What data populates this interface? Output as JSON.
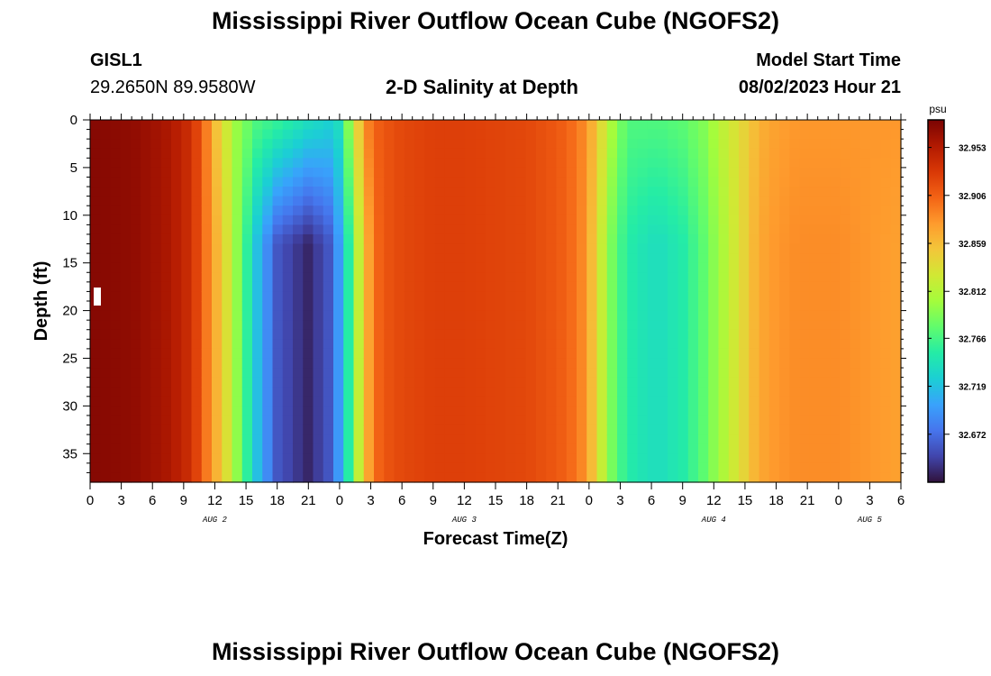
{
  "header": {
    "title": "Mississippi River Outflow Ocean Cube (NGOFS2)",
    "station": "GISL1",
    "coords": "29.2650N  89.9580W",
    "subtitle": "2-D Salinity at Depth",
    "model_start_label": "Model Start Time",
    "model_start_value": "08/02/2023 Hour 21"
  },
  "footer": {
    "title": "Mississippi River Outflow Ocean Cube (NGOFS2)"
  },
  "chart_data": {
    "type": "heatmap",
    "xlabel": "Forecast Time(Z)",
    "ylabel": "Depth (ft)",
    "x_hours": [
      0,
      78
    ],
    "x_tick_labels": [
      "0",
      "3",
      "6",
      "9",
      "12",
      "15",
      "18",
      "21",
      "0",
      "3",
      "6",
      "9",
      "12",
      "15",
      "18",
      "21",
      "0",
      "3",
      "6",
      "9",
      "12",
      "15",
      "18",
      "21",
      "0",
      "3",
      "6"
    ],
    "day_labels": [
      {
        "hour": 12,
        "label": "AUG 2"
      },
      {
        "hour": 36,
        "label": "AUG 3"
      },
      {
        "hour": 60,
        "label": "AUG 4"
      },
      {
        "hour": 75,
        "label": "AUG 5"
      }
    ],
    "ylim": [
      0,
      38
    ],
    "y_ticks": [
      0,
      5,
      10,
      15,
      20,
      25,
      30,
      35
    ],
    "colorbar": {
      "unit": "psu",
      "min": 32.625,
      "max": 32.98,
      "ticks": [
        32.953,
        32.906,
        32.859,
        32.812,
        32.766,
        32.719,
        32.672
      ],
      "colors": [
        "#30123b",
        "#4145ab",
        "#4675ed",
        "#39a2fc",
        "#1bcfd4",
        "#24eca6",
        "#61fc6c",
        "#a4fc3c",
        "#d1e834",
        "#f3c63a",
        "#fe9b2d",
        "#f36315",
        "#d93806",
        "#b11901",
        "#7a0403"
      ]
    },
    "salinity_profile": {
      "hours": [
        0,
        4,
        7,
        9,
        10,
        11,
        12,
        13,
        14,
        16,
        18,
        21,
        23,
        24,
        25,
        26,
        27,
        28,
        30,
        33,
        36,
        42,
        45,
        47,
        48,
        49,
        50,
        51,
        52,
        54,
        55,
        57,
        59,
        61,
        63,
        64,
        65,
        66,
        68,
        72,
        75,
        78
      ],
      "surface_psu": [
        32.975,
        32.97,
        32.96,
        32.945,
        32.93,
        32.9,
        32.86,
        32.83,
        32.8,
        32.77,
        32.76,
        32.74,
        32.73,
        32.74,
        32.8,
        32.86,
        32.9,
        32.91,
        32.92,
        32.925,
        32.925,
        32.92,
        32.91,
        32.895,
        32.875,
        32.845,
        32.81,
        32.785,
        32.77,
        32.77,
        32.77,
        32.775,
        32.79,
        32.82,
        32.845,
        32.86,
        32.87,
        32.875,
        32.88,
        32.88,
        32.88,
        32.88
      ],
      "bottom_psu": [
        32.975,
        32.97,
        32.96,
        32.945,
        32.93,
        32.9,
        32.87,
        32.84,
        32.8,
        32.72,
        32.66,
        32.635,
        32.66,
        32.7,
        32.76,
        32.83,
        32.885,
        32.91,
        32.92,
        32.925,
        32.925,
        32.92,
        32.91,
        32.895,
        32.87,
        32.83,
        32.79,
        32.765,
        32.75,
        32.74,
        32.74,
        32.75,
        32.775,
        32.81,
        32.845,
        32.865,
        32.875,
        32.88,
        32.885,
        32.885,
        32.88,
        32.875
      ]
    }
  }
}
